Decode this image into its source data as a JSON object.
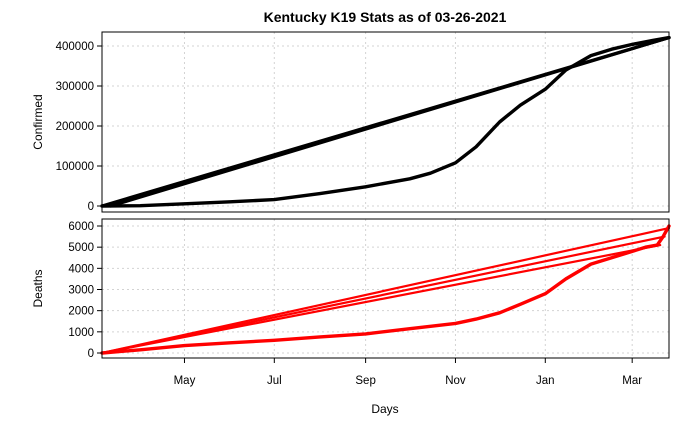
{
  "chart_data": {
    "title": "Kentucky K19 Stats as of 03-26-2021",
    "xlabel": "Days",
    "x_ticks": [
      "May",
      "Jul",
      "Sep",
      "Nov",
      "Jan",
      "Mar"
    ],
    "x_tick_dates": [
      "2020-05-01",
      "2020-07-01",
      "2020-09-01",
      "2020-11-01",
      "2021-01-01",
      "2021-03-01"
    ],
    "xlim": [
      "2020-03-06",
      "2021-03-26"
    ],
    "grid": true,
    "panels": [
      {
        "type": "line",
        "ylabel": "Confirmed",
        "color": "#000000",
        "ylim": [
          0,
          420000
        ],
        "y_ticks": [
          0,
          100000,
          200000,
          300000,
          400000
        ],
        "series": [
          {
            "x": [
              "2020-03-06",
              "2020-04-01",
              "2020-05-01",
              "2020-06-01",
              "2020-07-01",
              "2020-08-01",
              "2020-09-01",
              "2020-10-01",
              "2020-10-15",
              "2020-11-01",
              "2020-11-15",
              "2020-12-01",
              "2020-12-15",
              "2021-01-01",
              "2021-01-15",
              "2021-02-01",
              "2021-02-15",
              "2021-03-01",
              "2021-03-15",
              "2021-03-26"
            ],
            "y": [
              0,
              800,
              5500,
              10500,
              16000,
              31000,
              48000,
              68000,
              82000,
              108000,
              148000,
              210000,
              252000,
              292000,
              340000,
              376000,
              392000,
              404000,
              414000,
              421000
            ]
          },
          {
            "x": [
              "2020-03-06",
              "2021-03-26"
            ],
            "y": [
              0,
              421000
            ]
          },
          {
            "x": [
              "2020-03-12",
              "2021-03-26"
            ],
            "y": [
              0,
              421000
            ]
          }
        ]
      },
      {
        "type": "line",
        "ylabel": "Deaths",
        "color": "#ff0000",
        "ylim": [
          0,
          6000
        ],
        "y_ticks": [
          0,
          1000,
          2000,
          3000,
          4000,
          5000,
          6000
        ],
        "series": [
          {
            "x": [
              "2020-03-06",
              "2020-04-01",
              "2020-05-01",
              "2020-06-01",
              "2020-07-01",
              "2020-08-01",
              "2020-09-01",
              "2020-10-01",
              "2020-11-01",
              "2020-11-15",
              "2020-12-01",
              "2020-12-15",
              "2021-01-01",
              "2021-01-15",
              "2021-02-01",
              "2021-02-15",
              "2021-03-01",
              "2021-03-10",
              "2021-03-18",
              "2021-03-22",
              "2021-03-26"
            ],
            "y": [
              0,
              150,
              350,
              480,
              600,
              760,
              900,
              1150,
              1400,
              1600,
              1900,
              2300,
              2800,
              3500,
              4200,
              4500,
              4800,
              5000,
              5100,
              5500,
              6000
            ]
          },
          {
            "x": [
              "2020-03-06",
              "2021-03-26"
            ],
            "y": [
              0,
              5900
            ]
          },
          {
            "x": [
              "2020-03-06",
              "2021-03-23"
            ],
            "y": [
              0,
              5500
            ]
          },
          {
            "x": [
              "2020-03-06",
              "2021-03-20"
            ],
            "y": [
              0,
              5100
            ]
          }
        ]
      }
    ]
  }
}
